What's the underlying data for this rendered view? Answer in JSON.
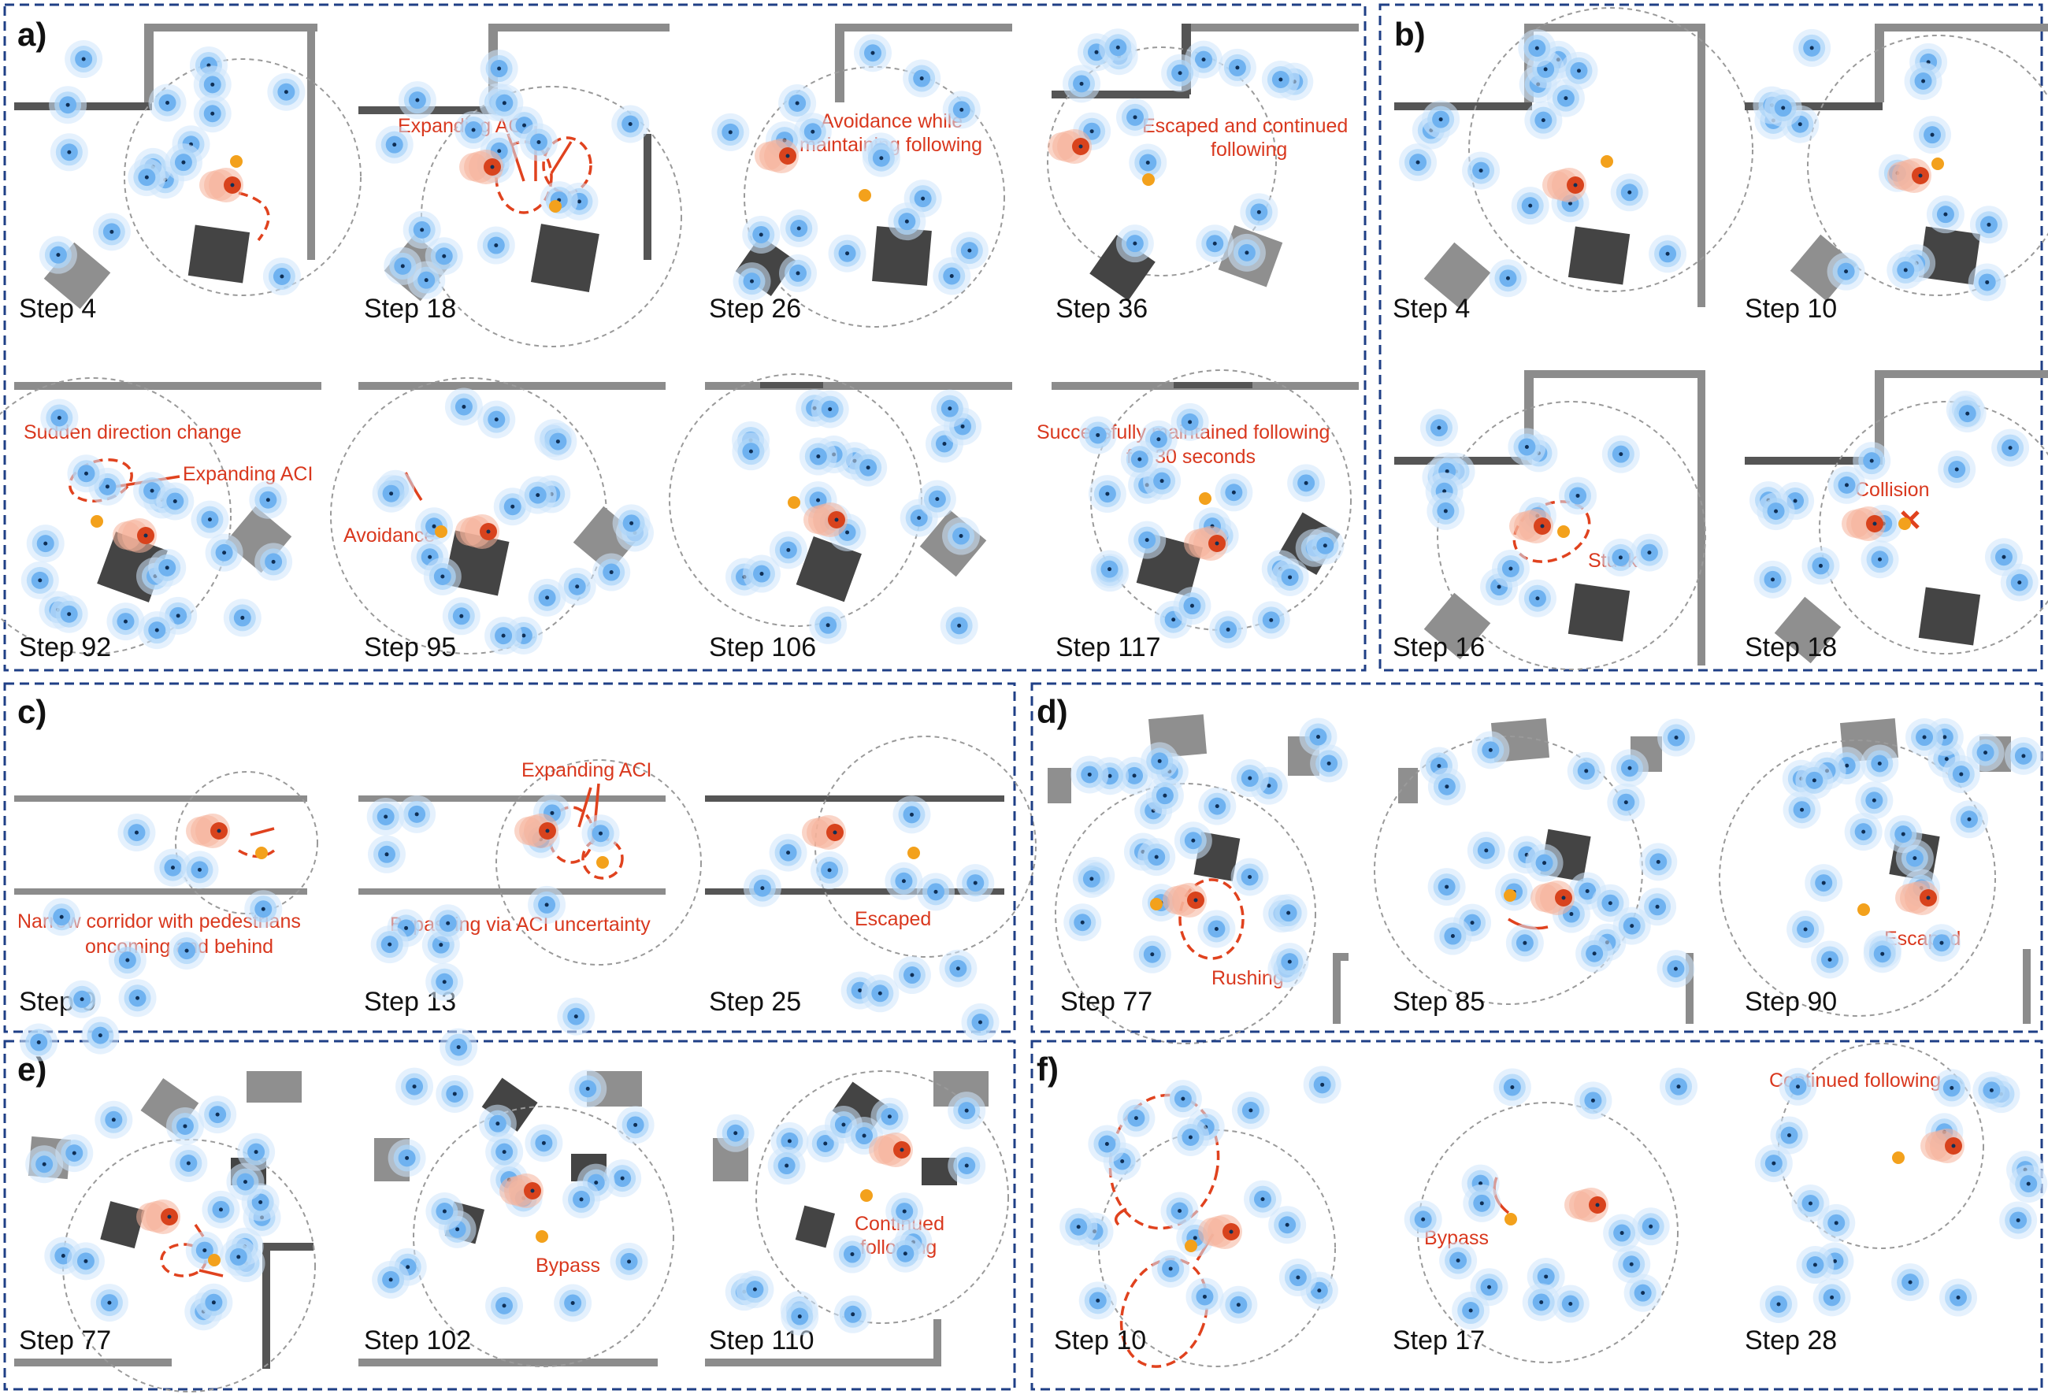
{
  "panels": [
    {
      "letter": "a)",
      "frames": [
        {
          "step": "Step 4",
          "annotations": []
        },
        {
          "step": "Step 18",
          "annotations": [
            "Expanding ACI"
          ]
        },
        {
          "step": "Step 26",
          "annotations": [
            "Avoidance while",
            "maintaining following"
          ]
        },
        {
          "step": "Step 36",
          "annotations": [
            "Escaped and continued",
            "following"
          ]
        },
        {
          "step": "Step 92",
          "annotations": [
            "Sudden direction change",
            "Expanding ACI"
          ]
        },
        {
          "step": "Step 95",
          "annotations": [
            "Avoidance"
          ]
        },
        {
          "step": "Step 106",
          "annotations": []
        },
        {
          "step": "Step 117",
          "annotations": [
            "Successfully maintained following",
            "for 30 seconds"
          ]
        }
      ]
    },
    {
      "letter": "b)",
      "frames": [
        {
          "step": "Step 4",
          "annotations": []
        },
        {
          "step": "Step 10",
          "annotations": []
        },
        {
          "step": "Step 16",
          "annotations": [
            "Stuck"
          ]
        },
        {
          "step": "Step 18",
          "annotations": [
            "Collision"
          ]
        }
      ]
    },
    {
      "letter": "c)",
      "frames": [
        {
          "step": "Step 9",
          "annotations": [
            "Narrow corridor  with pedestrians",
            "oncoming and behind"
          ]
        },
        {
          "step": "Step 13",
          "annotations": [
            "Expanding ACI",
            "Bypassing via ACI uncertainty"
          ]
        },
        {
          "step": "Step 25",
          "annotations": [
            "Escaped"
          ]
        }
      ]
    },
    {
      "letter": "d)",
      "frames": [
        {
          "step": "Step 77",
          "annotations": [
            "Rushing"
          ]
        },
        {
          "step": "Step 85",
          "annotations": []
        },
        {
          "step": "Step 90",
          "annotations": [
            "Escaped"
          ]
        }
      ]
    },
    {
      "letter": "e)",
      "frames": [
        {
          "step": "Step 77",
          "annotations": []
        },
        {
          "step": "Step 102",
          "annotations": [
            "Bypass"
          ]
        },
        {
          "step": "Step 110",
          "annotations": [
            "Continued",
            "following"
          ]
        }
      ]
    },
    {
      "letter": "f)",
      "frames": [
        {
          "step": "Step 10",
          "annotations": []
        },
        {
          "step": "Step 17",
          "annotations": [
            "Bypass"
          ]
        },
        {
          "step": "Step 28",
          "annotations": [
            "Continued following"
          ]
        }
      ]
    }
  ],
  "colors": {
    "panel_border": "#1f3f86",
    "annotation": "#d9381e",
    "pedestrian": "#6fb2f0",
    "robot": "#d8431d",
    "target": "#f3a11c",
    "obstacle_dark": "#444444",
    "obstacle_light": "#8f8f8f"
  },
  "icons": {
    "pedestrian": "pedestrian-marker-icon",
    "robot": "robot-marker-icon",
    "target": "target-person-icon",
    "collision": "collision-x-icon"
  }
}
